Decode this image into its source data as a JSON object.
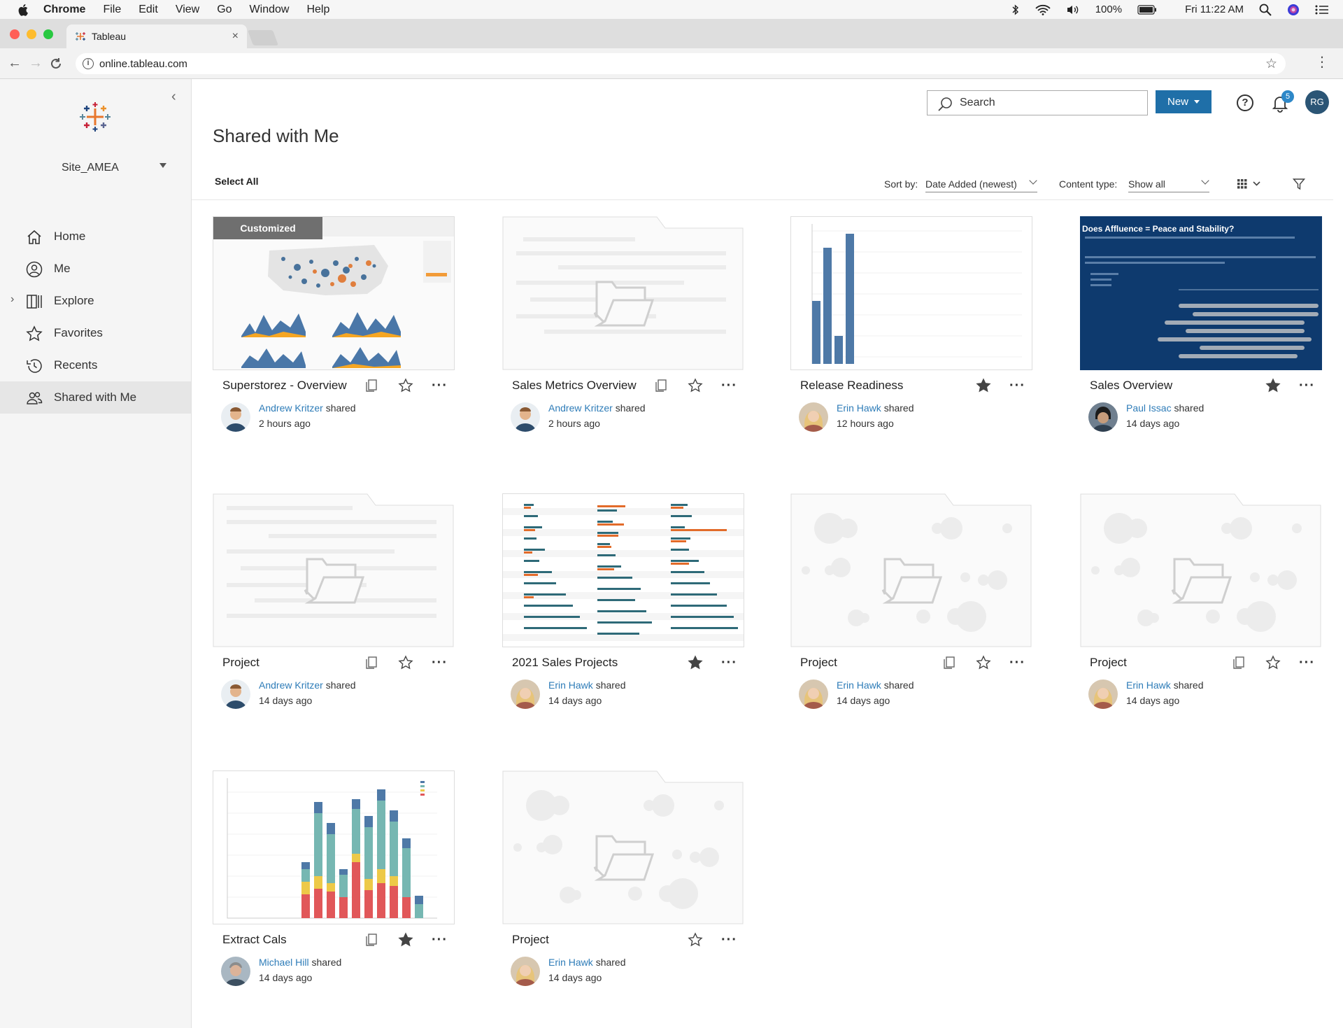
{
  "menubar": {
    "app": "Chrome",
    "items": [
      "File",
      "Edit",
      "View",
      "Go",
      "Window",
      "Help"
    ],
    "battery": "100%",
    "clock": "Fri 11:22 AM"
  },
  "browser": {
    "tab_title": "Tableau",
    "url": "online.tableau.com"
  },
  "sidebar": {
    "site": "Site_AMEA",
    "items": [
      {
        "label": "Home",
        "icon": "home-icon"
      },
      {
        "label": "Me",
        "icon": "person-icon"
      },
      {
        "label": "Explore",
        "icon": "explore-icon"
      },
      {
        "label": "Favorites",
        "icon": "star-icon"
      },
      {
        "label": "Recents",
        "icon": "clock-icon"
      },
      {
        "label": "Shared with Me",
        "icon": "shared-icon"
      }
    ]
  },
  "header": {
    "search_placeholder": "Search",
    "new_label": "New",
    "notification_count": "5",
    "user_initials": "RG"
  },
  "page": {
    "title": "Shared with Me",
    "select_all": "Select All",
    "sort_label": "Sort by:",
    "sort_value": "Date Added (newest)",
    "content_type_label": "Content type:",
    "content_type_value": "Show all"
  },
  "cards": [
    {
      "title": "Superstorez - Overview",
      "badge": "Customized",
      "owner": "Andrew Kritzer",
      "shared": "shared",
      "time": "2 hours ago",
      "favorite": false
    },
    {
      "title": "Sales Metrics Overview",
      "owner": "Andrew Kritzer",
      "shared": "shared",
      "time": "2 hours ago",
      "favorite": false
    },
    {
      "title": "Release Readiness",
      "owner": "Erin Hawk",
      "shared": "shared",
      "time": "12 hours ago",
      "favorite": true
    },
    {
      "title": "Sales Overview",
      "owner": "Paul Issac",
      "shared": "shared",
      "time": "14 days ago",
      "favorite": true,
      "thumb_title": "Does Affluence = Peace and Stability?"
    },
    {
      "title": "Project",
      "owner": "Andrew Kritzer",
      "shared": "shared",
      "time": "14 days ago",
      "favorite": false
    },
    {
      "title": "2021 Sales Projects",
      "owner": "Erin Hawk",
      "shared": "shared",
      "time": "14 days ago",
      "favorite": true
    },
    {
      "title": "Project",
      "owner": "Erin Hawk",
      "shared": "shared",
      "time": "14 days ago",
      "favorite": false
    },
    {
      "title": "Project",
      "owner": "Erin Hawk",
      "shared": "shared",
      "time": "14 days ago",
      "favorite": false
    },
    {
      "title": "Extract Cals",
      "owner": "Michael Hill",
      "shared": "shared",
      "time": "14 days ago",
      "favorite": true
    },
    {
      "title": "Project",
      "owner": "Erin Hawk",
      "shared": "shared",
      "time": "14 days ago",
      "favorite": false
    }
  ]
}
